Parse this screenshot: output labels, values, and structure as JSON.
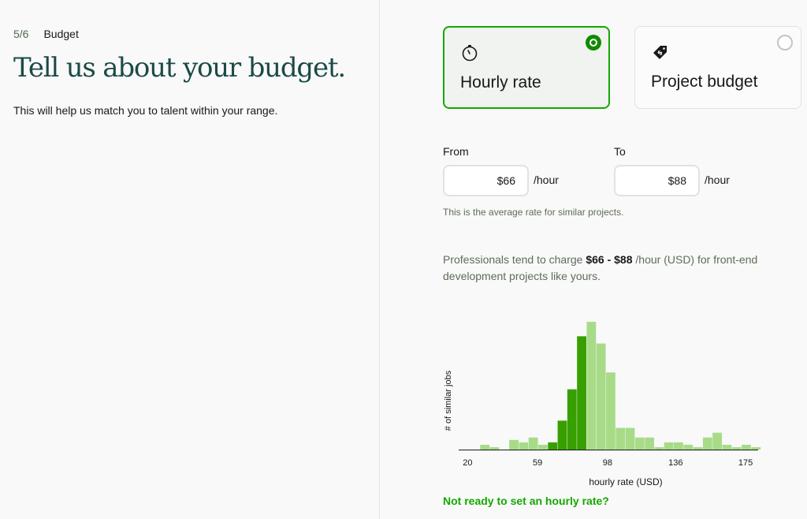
{
  "step": {
    "count": "5/6",
    "name": "Budget"
  },
  "headline": "Tell us about your budget.",
  "subtitle": "This will help us match you to talent within your range.",
  "options": [
    {
      "label": "Hourly rate",
      "icon": "stopwatch-icon",
      "selected": true
    },
    {
      "label": "Project budget",
      "icon": "price-tag-icon",
      "selected": false
    }
  ],
  "from": {
    "label": "From",
    "value": "$66",
    "unit": "/hour"
  },
  "to": {
    "label": "To",
    "value": "$88",
    "unit": "/hour"
  },
  "helper": "This is the average rate for similar projects.",
  "insight": {
    "prefix": "Professionals tend to charge ",
    "range": "$66 - $88",
    "suffix": " /hour (USD) for front-end development projects like yours."
  },
  "colors": {
    "accent": "#14a800",
    "selected_radio": "#108a00",
    "bar_in_range": "#37a000",
    "bar_out_range": "#a8db88",
    "headline": "#1b4a47"
  },
  "chart_data": {
    "type": "bar",
    "ylabel": "# of similar jobs",
    "xlabel": "hourly rate (USD)",
    "x_ticks": [
      20,
      59,
      98,
      136,
      175
    ],
    "xlim": [
      15,
      182
    ],
    "bin_width": 5.4,
    "bins_start": 27,
    "highlight_range": [
      66,
      88
    ],
    "values": [
      2,
      1,
      0,
      4,
      3,
      5,
      2,
      3,
      12,
      25,
      47,
      53,
      44,
      32,
      9,
      9,
      5,
      5,
      1,
      3,
      3,
      2,
      1,
      5,
      7,
      2,
      1,
      2,
      1,
      0,
      1,
      1,
      1,
      8,
      4,
      1,
      2,
      0,
      0,
      1,
      0
    ]
  },
  "not_ready": "Not ready to set an hourly rate?"
}
